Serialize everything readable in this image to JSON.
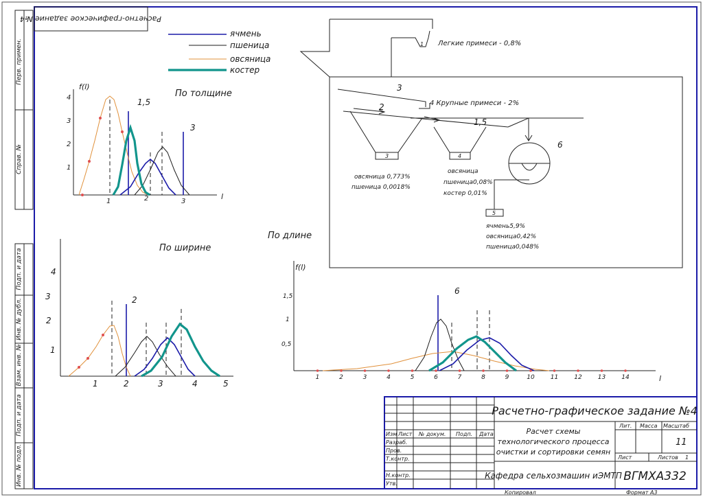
{
  "stamp_top": "Расчетно-графическое задание №4",
  "side_labels": [
    "Перв. примен.",
    "Справ. №",
    "Подп. и дата",
    "Инв. № дубл.",
    "Взам. инв. №",
    "Подп. и дата",
    "Инв. № подл."
  ],
  "legend": [
    {
      "name": "ячмень",
      "color": "#1a1aa8",
      "style": "blue"
    },
    {
      "name": "пшеница",
      "color": "#1a1a1a",
      "style": "black"
    },
    {
      "name": "овсяница",
      "color": "#e0903a",
      "style": "orange"
    },
    {
      "name": "костер",
      "color": "#12958c",
      "style": "teal"
    }
  ],
  "chart1": {
    "title": "По толщине",
    "ylabel": "f(l)",
    "xlabel": "l",
    "yticks": [
      "1",
      "2",
      "3",
      "4"
    ],
    "xticks": [
      "1",
      "2",
      "3"
    ],
    "markers": [
      "1,5",
      "3"
    ]
  },
  "chart2": {
    "title": "По ширине",
    "yticks": [
      "1",
      "2",
      "3",
      "4"
    ],
    "xticks": [
      "1",
      "2",
      "3",
      "4",
      "5"
    ],
    "markers": [
      "2"
    ]
  },
  "chart3": {
    "title": "По длине",
    "ylabel": "f(l)",
    "xlabel": "l",
    "yticks": [
      "0,5",
      "1",
      "1,5"
    ],
    "xticks": [
      "1",
      "2",
      "3",
      "4",
      "5",
      "6",
      "7",
      "8",
      "9",
      "10",
      "11",
      "12",
      "13",
      "14"
    ],
    "markers": [
      "6"
    ]
  },
  "scheme": {
    "light": "Легкие примеси - 0,8%",
    "large": "4 Крупные примеси - 2%",
    "lbl_1": "1",
    "lbl_2": "2",
    "lbl_3": "3",
    "lbl_15": "1,5",
    "lbl_6": "6",
    "b3": "3",
    "b4": "4",
    "b5": "5",
    "b3_lines": [
      "овсяница 0,773%",
      "пшеница 0,0018%"
    ],
    "b4_lines": [
      "овсяница",
      "пшеница0,08%",
      "костер 0,01%"
    ],
    "b5_lines": [
      "ячмень5,9%",
      "овсяница0,42%",
      "пшеница0,048%"
    ]
  },
  "title_block": {
    "main_title": "Расчетно-графическое задание №4",
    "subtitle": [
      "Расчет схемы",
      "технологического процесса",
      "очистки и сортировки семян"
    ],
    "dept": "Кафедра сельхозмашин иЭМТП",
    "code": "ВГМХА332",
    "lit": "Лит.",
    "mass": "Масса",
    "scale": "Масштаб",
    "scale_val": "11",
    "sheet": "Лист",
    "sheets": "Листов",
    "sheets_val": "1",
    "cols": [
      "Изм",
      "Лист",
      "№ докум.",
      "Подп.",
      "Дата"
    ],
    "rows": [
      "Разраб.",
      "Пров.",
      "Т.контр.",
      "Н.контр.",
      "Утв."
    ],
    "copied": "Копировал",
    "format": "Формат А3"
  }
}
